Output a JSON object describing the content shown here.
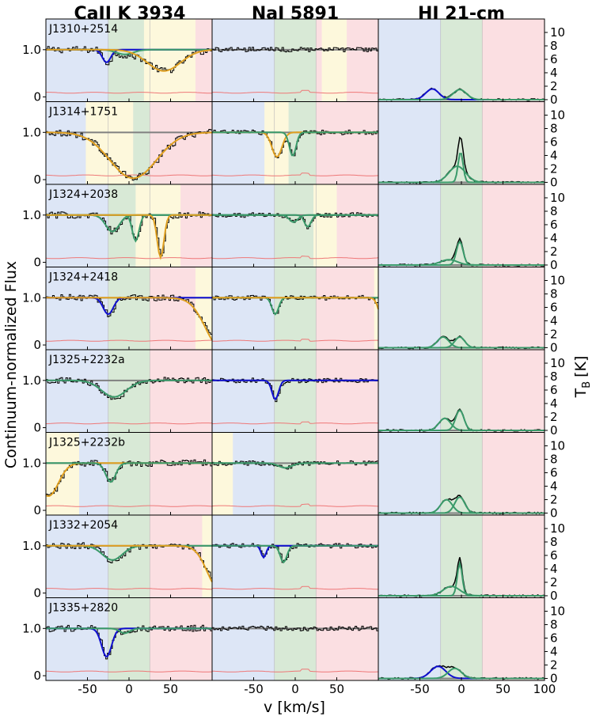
{
  "chart_data": {
    "type": "line",
    "columns": [
      {
        "title": "CaII K 3934"
      },
      {
        "title": "NaI 5891"
      },
      {
        "title": "HI 21-cm"
      }
    ],
    "xlabel": "v [km/s]",
    "ylabel_left": "Continuum-normalized Flux",
    "ylabel_right": "T",
    "ylabel_right_sub": "B",
    "ylabel_right_unit": "[K]",
    "xlim": [
      -100,
      100
    ],
    "flux_ylim": [
      -0.1,
      1.65
    ],
    "tb_ylim": [
      -0.3,
      12
    ],
    "xticks": [
      -50,
      0,
      50,
      100
    ],
    "flux_yticks": [
      {
        "value": 0,
        "label": "0"
      },
      {
        "value": 1,
        "label": "1.0"
      }
    ],
    "tb_yticks": [
      0,
      2,
      4,
      6,
      8,
      10
    ],
    "velocity_bands": {
      "blue": {
        "from": -100,
        "to": -25,
        "color": "#dde6f6"
      },
      "green": {
        "from": -25,
        "to": 25,
        "color": "#d8e9d6"
      },
      "red": {
        "from": 25,
        "to": 100,
        "color": "#fbdfe2"
      },
      "yellow_color": "#fdf8dc"
    },
    "colors": {
      "data": "#000000",
      "continuum": "#808080",
      "error": "#ee7777",
      "blue_fit": "#1010d0",
      "green_fit": "#3a9a6a",
      "yellow_fit": "#e0a020"
    },
    "rows": [
      {
        "label": "J1310+2514",
        "ca": {
          "comps": [
            {
              "v": -27,
              "d": 0.27,
              "w": 5,
              "c": "blue"
            },
            {
              "v": -5,
              "d": 0.1,
              "w": 10,
              "c": "green"
            },
            {
              "v": 42,
              "d": 0.45,
              "w": 20,
              "c": "yellow"
            }
          ],
          "yellow": [
            [
              18,
              80
            ]
          ]
        },
        "na": {
          "comps": [],
          "yellow": [
            [
              32,
              62
            ]
          ]
        },
        "hi": {
          "comps": [
            {
              "v": -35,
              "a": 1.6,
              "w": 8,
              "c": "blue"
            },
            {
              "v": -2,
              "a": 1.5,
              "w": 8,
              "c": "green"
            }
          ]
        }
      },
      {
        "label": "J1314+1751",
        "ca": {
          "comps": [
            {
              "v": 5,
              "d": 0.97,
              "w": 28,
              "c": "yellow"
            }
          ],
          "yellow": [
            [
              -52,
              5
            ]
          ]
        },
        "na": {
          "comps": [
            {
              "v": -22,
              "d": 0.52,
              "w": 6,
              "c": "yellow"
            },
            {
              "v": -3,
              "d": 0.5,
              "w": 4,
              "c": "green"
            }
          ],
          "yellow": [
            [
              -37,
              -8
            ]
          ]
        },
        "hi": {
          "comps": [
            {
              "v": -1,
              "a": 4.5,
              "w": 3,
              "c": "green"
            },
            {
              "v": -5,
              "a": 2.4,
              "w": 10,
              "c": "green"
            }
          ]
        }
      },
      {
        "label": "J1324+2038",
        "ca": {
          "comps": [
            {
              "v": -20,
              "d": 0.35,
              "w": 8,
              "c": "green"
            },
            {
              "v": 8,
              "d": 0.55,
              "w": 4,
              "c": "green"
            },
            {
              "v": 38,
              "d": 0.9,
              "w": 4,
              "c": "yellow"
            }
          ],
          "yellow": [
            [
              8,
              62
            ]
          ]
        },
        "na": {
          "comps": [
            {
              "v": -2,
              "d": 0.15,
              "w": 5,
              "c": "green"
            },
            {
              "v": 15,
              "d": 0.25,
              "w": 4,
              "c": "green"
            }
          ],
          "yellow": [
            [
              22,
              50
            ]
          ]
        },
        "hi": {
          "comps": [
            {
              "v": -2,
              "a": 3.5,
              "w": 4,
              "c": "green"
            },
            {
              "v": -15,
              "a": 0.8,
              "w": 10,
              "c": "green"
            }
          ]
        }
      },
      {
        "label": "J1324+2418",
        "ca": {
          "comps": [
            {
              "v": -25,
              "d": 0.35,
              "w": 6,
              "c": "blue"
            },
            {
              "v": 110,
              "d": 1.05,
              "w": 18,
              "c": "yellow"
            }
          ],
          "yellow": [
            [
              80,
              100
            ]
          ]
        },
        "na": {
          "comps": [
            {
              "v": -24,
              "d": 0.35,
              "w": 4,
              "c": "green"
            },
            {
              "v": 106,
              "d": 0.5,
              "w": 5,
              "c": "yellow"
            }
          ],
          "yellow": [
            [
              95,
              100
            ]
          ]
        },
        "hi": {
          "comps": [
            {
              "v": -22,
              "a": 1.6,
              "w": 7,
              "c": "green"
            },
            {
              "v": -2,
              "a": 1.6,
              "w": 6,
              "c": "green"
            }
          ]
        }
      },
      {
        "label": "J1325+2232a",
        "ca": {
          "comps": [
            {
              "v": -18,
              "d": 0.35,
              "w": 15,
              "c": "green"
            }
          ],
          "yellow": []
        },
        "na": {
          "comps": [
            {
              "v": -24,
              "d": 0.4,
              "w": 4,
              "c": "blue"
            }
          ],
          "yellow": []
        },
        "hi": {
          "comps": [
            {
              "v": -20,
              "a": 1.8,
              "w": 7,
              "c": "green"
            },
            {
              "v": -2,
              "a": 3,
              "w": 5,
              "c": "green"
            }
          ]
        }
      },
      {
        "label": "J1325+2232b",
        "ca": {
          "comps": [
            {
              "v": -97,
              "d": 0.7,
              "w": 12,
              "c": "yellow"
            },
            {
              "v": -22,
              "d": 0.4,
              "w": 6,
              "c": "green"
            }
          ],
          "yellow": [
            [
              -100,
              -60
            ]
          ]
        },
        "na": {
          "comps": [
            {
              "v": -12,
              "d": 0.1,
              "w": 8,
              "c": "green"
            }
          ],
          "yellow": [
            [
              -100,
              -75
            ]
          ]
        },
        "hi": {
          "comps": [
            {
              "v": -18,
              "a": 2,
              "w": 7,
              "c": "green"
            },
            {
              "v": -2,
              "a": 2.4,
              "w": 6,
              "c": "green"
            }
          ]
        }
      },
      {
        "label": "J1332+2054",
        "ca": {
          "comps": [
            {
              "v": -20,
              "d": 0.3,
              "w": 12,
              "c": "green"
            },
            {
              "v": 108,
              "d": 0.9,
              "w": 14,
              "c": "yellow"
            }
          ],
          "yellow": [
            [
              88,
              100
            ]
          ]
        },
        "na": {
          "comps": [
            {
              "v": -38,
              "d": 0.25,
              "w": 3,
              "c": "blue"
            },
            {
              "v": -14,
              "d": 0.35,
              "w": 4,
              "c": "green"
            }
          ],
          "yellow": []
        },
        "hi": {
          "comps": [
            {
              "v": -2,
              "a": 4.8,
              "w": 3,
              "c": "green"
            },
            {
              "v": -12,
              "a": 1.4,
              "w": 10,
              "c": "green"
            }
          ]
        }
      },
      {
        "label": "J1335+2820",
        "ca": {
          "comps": [
            {
              "v": -27,
              "d": 0.6,
              "w": 6,
              "c": "blue"
            },
            {
              "v": -5,
              "d": 0.1,
              "w": 6,
              "c": "green"
            }
          ],
          "yellow": []
        },
        "na": {
          "comps": [],
          "yellow": []
        },
        "hi": {
          "comps": [
            {
              "v": -28,
              "a": 1.8,
              "w": 9,
              "c": "blue"
            },
            {
              "v": -8,
              "a": 1.5,
              "w": 8,
              "c": "green"
            }
          ]
        }
      }
    ]
  }
}
